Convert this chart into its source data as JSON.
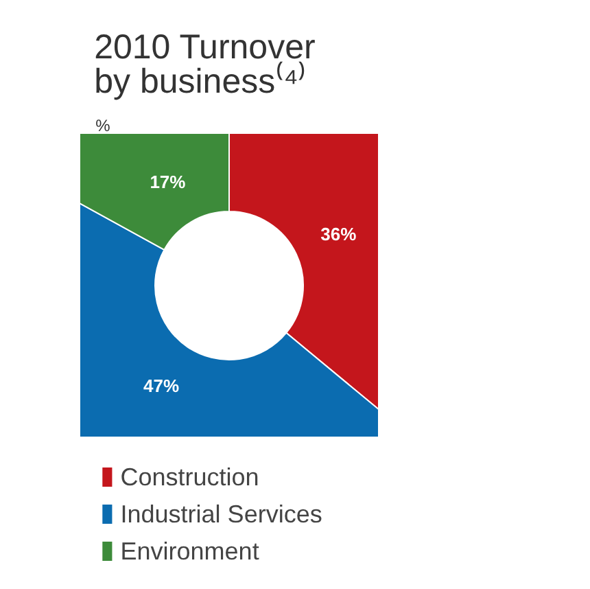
{
  "chart_data": {
    "type": "donut",
    "title": "2010 Turnover\nby business⁽⁴⁾",
    "subtitle": "%",
    "categories": [
      "Construction",
      "Industrial Services",
      "Environment"
    ],
    "values": [
      36,
      47,
      17
    ],
    "value_labels": [
      "36%",
      "47%",
      "17%"
    ],
    "colors": [
      "#c4161c",
      "#0b6cb0",
      "#3d8b3a"
    ],
    "legend": "bottom"
  }
}
